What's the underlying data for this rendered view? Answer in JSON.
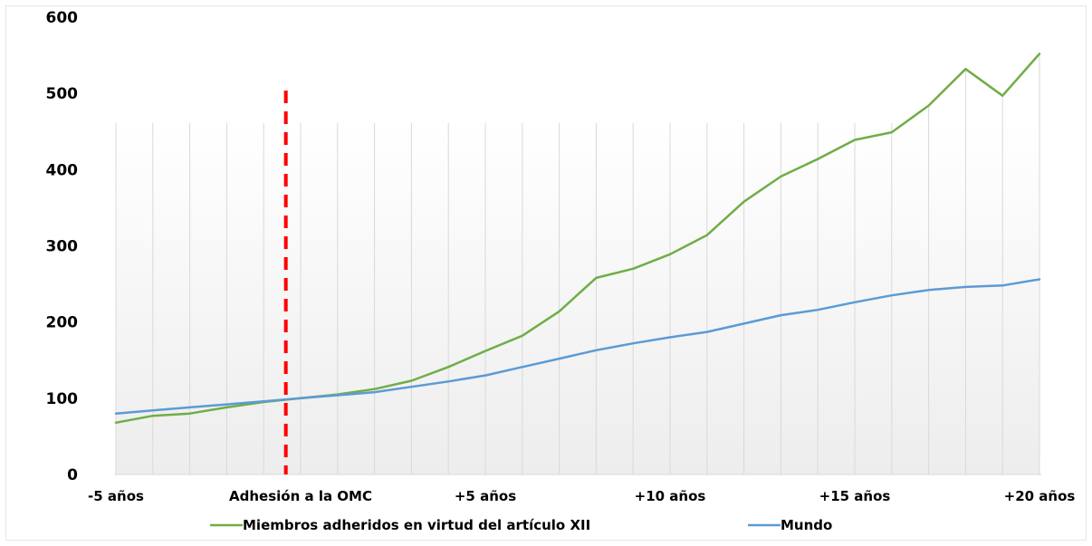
{
  "chart_data": {
    "type": "line",
    "x": [
      -5,
      -4,
      -3,
      -2,
      -1,
      0,
      1,
      2,
      3,
      4,
      5,
      6,
      7,
      8,
      9,
      10,
      11,
      12,
      13,
      14,
      15,
      16,
      17,
      18,
      19,
      20
    ],
    "x_tick_labels": [
      {
        "x": -5,
        "label": "-5 años"
      },
      {
        "x": 0,
        "label": "Adhesión a la OMC"
      },
      {
        "x": 5,
        "label": "+5 años"
      },
      {
        "x": 10,
        "label": "+10 años"
      },
      {
        "x": 15,
        "label": "+15 años"
      },
      {
        "x": 20,
        "label": "+20 años"
      }
    ],
    "series": [
      {
        "name": "Miembros adheridos en virtud del artículo XII",
        "color": "#70ad47",
        "values": [
          68,
          77,
          80,
          88,
          95,
          100,
          105,
          112,
          123,
          141,
          162,
          182,
          214,
          258,
          270,
          289,
          314,
          358,
          391,
          414,
          439,
          449,
          484,
          532,
          497,
          552
        ]
      },
      {
        "name": "Mundo",
        "color": "#5b9bd5",
        "values": [
          80,
          84,
          88,
          92,
          96,
          100,
          104,
          108,
          115,
          122,
          130,
          141,
          152,
          163,
          172,
          180,
          187,
          198,
          209,
          216,
          226,
          235,
          242,
          246,
          248,
          256
        ]
      }
    ],
    "y_ticks": [
      0,
      100,
      200,
      300,
      400,
      500,
      600
    ],
    "ylim": [
      0,
      600
    ],
    "xlim": [
      -5,
      20
    ],
    "title": "",
    "xlabel": "",
    "ylabel": "",
    "accession_marker": {
      "x": -0.4,
      "color": "#ff0000",
      "style": "dashed"
    },
    "grid": "vertical",
    "legend_position": "bottom"
  }
}
